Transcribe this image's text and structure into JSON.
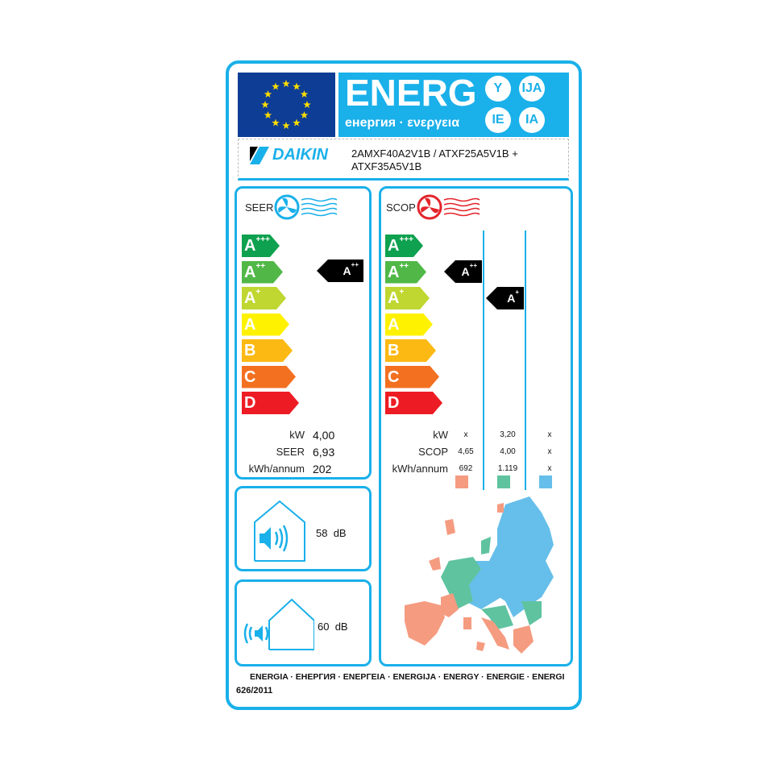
{
  "header": {
    "energy_word": "ENERG",
    "energy_sub": "енергия · ενεργεια",
    "suffixes": [
      "Y",
      "IJA",
      "IE",
      "IA"
    ]
  },
  "model": {
    "brand": "DAIKIN",
    "line1": "2AMXF40A2V1B / ATXF25A5V1B +",
    "line2": "ATXF35A5V1B"
  },
  "scale": [
    {
      "letter": "A",
      "plus": "+++",
      "color": "#0ea14f"
    },
    {
      "letter": "A",
      "plus": "++",
      "color": "#51b848"
    },
    {
      "letter": "A",
      "plus": "+",
      "color": "#bfd730"
    },
    {
      "letter": "A",
      "plus": "",
      "color": "#fff200"
    },
    {
      "letter": "B",
      "plus": "",
      "color": "#fdb913"
    },
    {
      "letter": "C",
      "plus": "",
      "color": "#f37021"
    },
    {
      "letter": "D",
      "plus": "",
      "color": "#ed1c24"
    }
  ],
  "seer": {
    "title": "SEER",
    "class": "A",
    "class_plus": "++",
    "rows": [
      {
        "label": "kW",
        "value": "4,00"
      },
      {
        "label": "SEER",
        "value": "6,93"
      },
      {
        "label": "kWh/annum",
        "value": "202"
      }
    ]
  },
  "scop": {
    "title": "SCOP",
    "classes": [
      {
        "letter": "A",
        "plus": "++"
      },
      {
        "letter": "A",
        "plus": "+"
      }
    ],
    "rows": [
      {
        "label": "kW",
        "values": [
          "x",
          "3,20",
          "x"
        ]
      },
      {
        "label": "SCOP",
        "values": [
          "4,65",
          "4,00",
          "x"
        ]
      },
      {
        "label": "kWh/annum",
        "values": [
          "692",
          "1.119",
          "x"
        ]
      }
    ],
    "zone_colors": [
      "#f59b80",
      "#5fc3a0",
      "#66bfea"
    ]
  },
  "sound": {
    "indoor": "58",
    "outdoor": "60",
    "unit": "dB"
  },
  "footer": {
    "languages": "ENERGIA · ЕНЕРГИЯ · ΕΝΕΡΓΕΙΑ · ENERGIJA · ENERGY · ENERGIE · ENERGI",
    "regulation": "626/2011"
  },
  "colors": {
    "accent": "#1ab0ea",
    "flag": "#0d3d95",
    "star": "#ffdd00"
  }
}
